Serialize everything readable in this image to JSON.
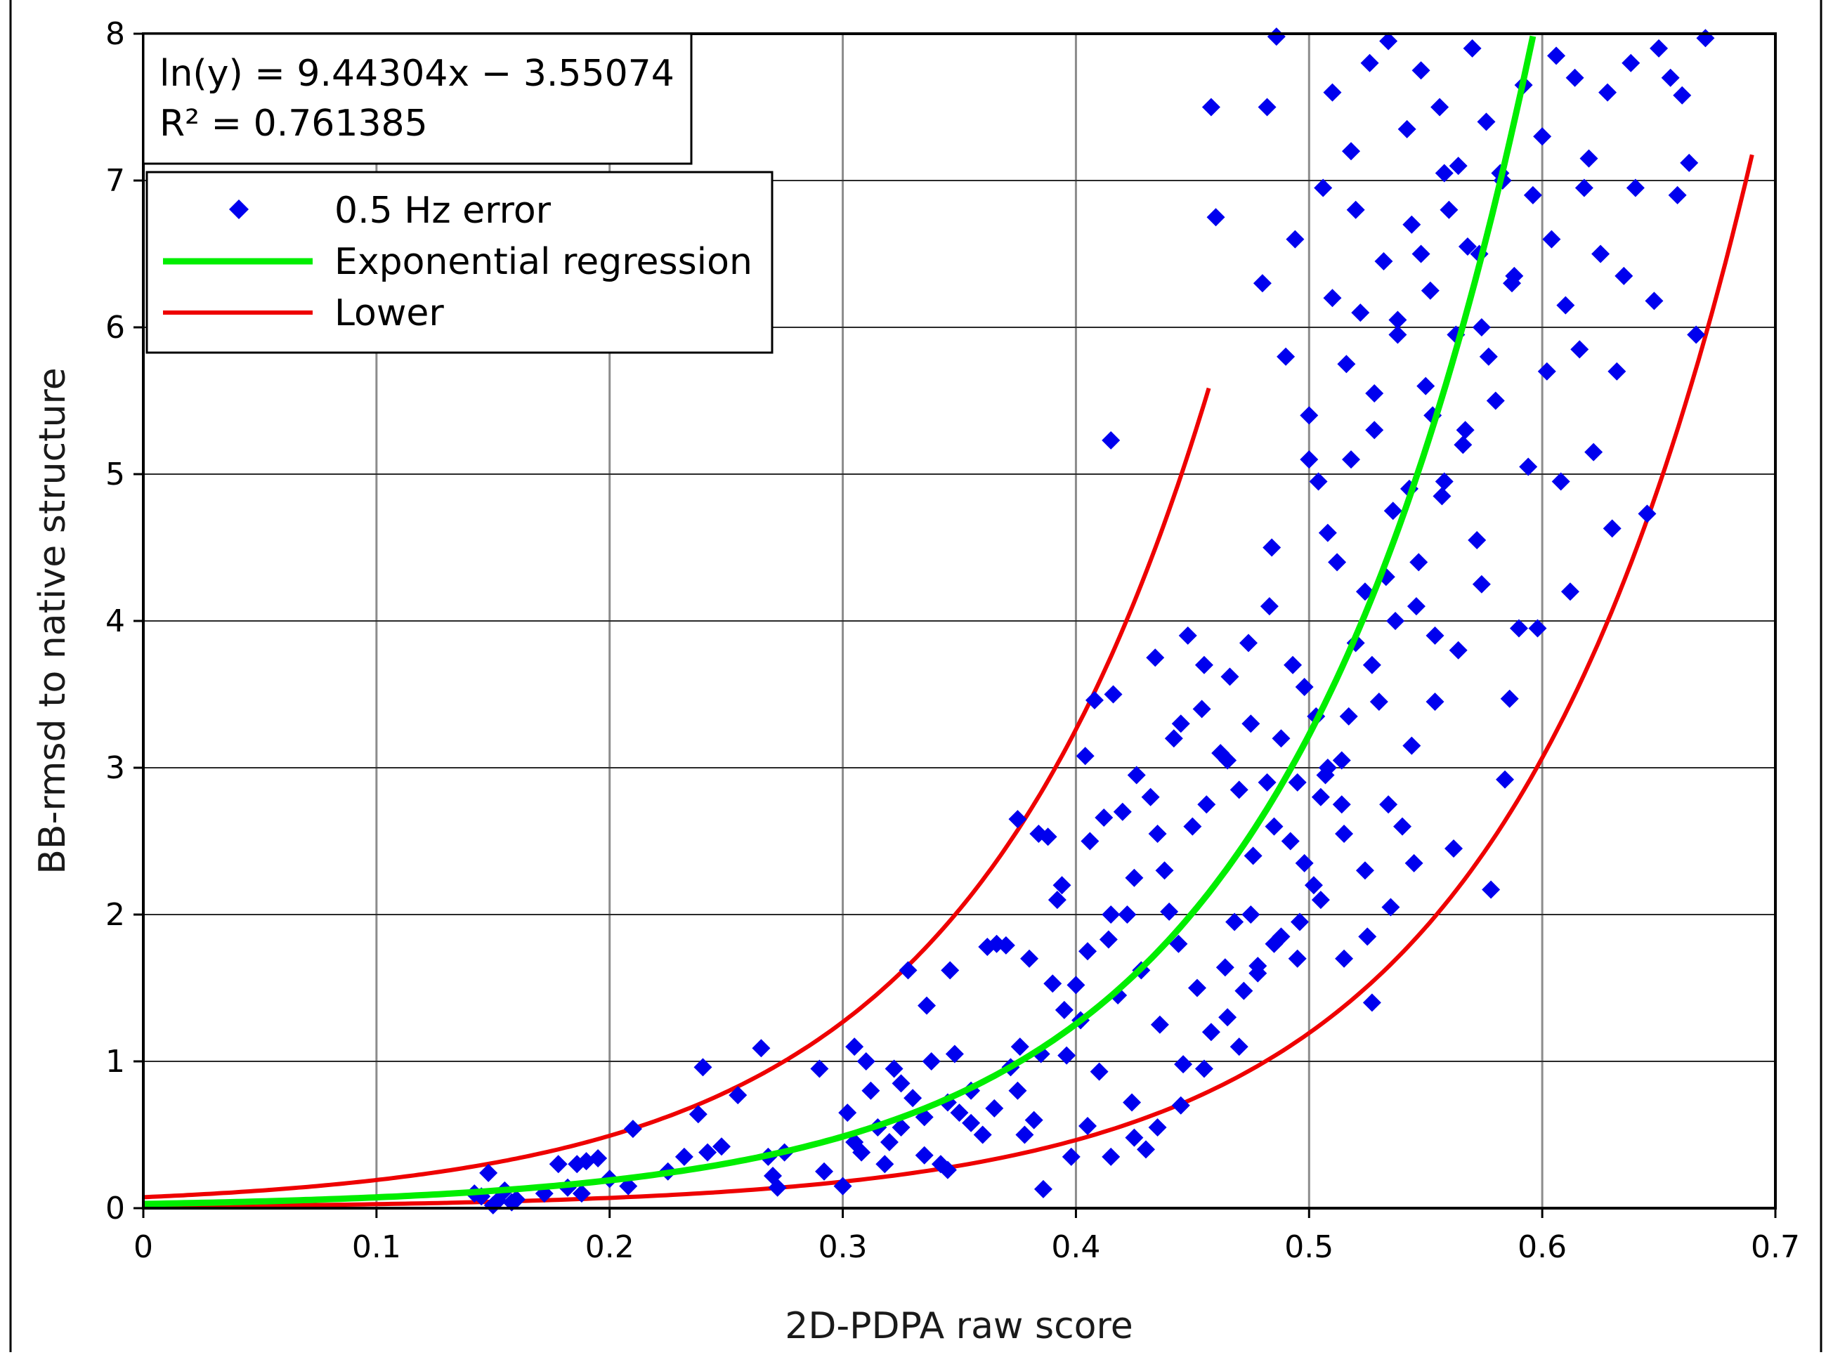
{
  "chart_data": {
    "type": "scatter",
    "title": "",
    "xlabel": "2D-PDPA raw score",
    "ylabel": "BB-rmsd to native structure",
    "xlim": [
      0,
      0.7
    ],
    "ylim": [
      0,
      8
    ],
    "x_ticks": [
      "0",
      "0.1",
      "0.2",
      "0.3",
      "0.4",
      "0.5",
      "0.6",
      "0.7"
    ],
    "y_ticks": [
      "0",
      "1",
      "2",
      "3",
      "4",
      "5",
      "6",
      "7",
      "8"
    ],
    "grid": true,
    "annotation": {
      "equation": "ln(y) = 9.44304x − 3.55074",
      "r_squared": "R² = 0.761385"
    },
    "regression": {
      "slope": 9.44304,
      "intercept": -3.55074
    },
    "series": [
      {
        "name": "0.5 Hz error",
        "kind": "scatter",
        "marker": "diamond",
        "color": "#0000ee",
        "points": [
          [
            0.145,
            0.08
          ],
          [
            0.148,
            0.24
          ],
          [
            0.15,
            0.02
          ],
          [
            0.152,
            0.05
          ],
          [
            0.158,
            0.04
          ],
          [
            0.142,
            0.1
          ],
          [
            0.155,
            0.12
          ],
          [
            0.16,
            0.06
          ],
          [
            0.172,
            0.1
          ],
          [
            0.178,
            0.3
          ],
          [
            0.182,
            0.14
          ],
          [
            0.186,
            0.3
          ],
          [
            0.19,
            0.32
          ],
          [
            0.195,
            0.34
          ],
          [
            0.188,
            0.1
          ],
          [
            0.2,
            0.2
          ],
          [
            0.21,
            0.54
          ],
          [
            0.208,
            0.15
          ],
          [
            0.225,
            0.25
          ],
          [
            0.232,
            0.35
          ],
          [
            0.24,
            0.96
          ],
          [
            0.242,
            0.38
          ],
          [
            0.248,
            0.42
          ],
          [
            0.255,
            0.77
          ],
          [
            0.238,
            0.64
          ],
          [
            0.265,
            1.09
          ],
          [
            0.268,
            0.35
          ],
          [
            0.27,
            0.22
          ],
          [
            0.272,
            0.14
          ],
          [
            0.275,
            0.38
          ],
          [
            0.29,
            0.95
          ],
          [
            0.292,
            0.25
          ],
          [
            0.3,
            0.15
          ],
          [
            0.302,
            0.65
          ],
          [
            0.305,
            1.1
          ],
          [
            0.308,
            0.38
          ],
          [
            0.31,
            1.0
          ],
          [
            0.312,
            0.8
          ],
          [
            0.318,
            0.3
          ],
          [
            0.32,
            0.45
          ],
          [
            0.322,
            0.95
          ],
          [
            0.325,
            0.55
          ],
          [
            0.328,
            1.62
          ],
          [
            0.33,
            0.75
          ],
          [
            0.335,
            0.36
          ],
          [
            0.336,
            1.38
          ],
          [
            0.338,
            1.0
          ],
          [
            0.342,
            0.3
          ],
          [
            0.345,
            0.26
          ],
          [
            0.346,
            1.62
          ],
          [
            0.348,
            1.05
          ],
          [
            0.35,
            0.65
          ],
          [
            0.355,
            0.8
          ],
          [
            0.36,
            0.5
          ],
          [
            0.362,
            1.78
          ],
          [
            0.366,
            1.8
          ],
          [
            0.37,
            1.79
          ],
          [
            0.372,
            0.96
          ],
          [
            0.375,
            2.65
          ],
          [
            0.376,
            1.1
          ],
          [
            0.378,
            0.5
          ],
          [
            0.38,
            1.7
          ],
          [
            0.382,
            0.6
          ],
          [
            0.384,
            2.55
          ],
          [
            0.386,
            0.13
          ],
          [
            0.388,
            2.53
          ],
          [
            0.39,
            1.53
          ],
          [
            0.392,
            2.1
          ],
          [
            0.394,
            2.2
          ],
          [
            0.396,
            1.04
          ],
          [
            0.398,
            0.35
          ],
          [
            0.4,
            1.52
          ],
          [
            0.402,
            1.28
          ],
          [
            0.404,
            3.08
          ],
          [
            0.405,
            0.56
          ],
          [
            0.406,
            2.5
          ],
          [
            0.408,
            3.46
          ],
          [
            0.41,
            0.93
          ],
          [
            0.412,
            2.66
          ],
          [
            0.414,
            1.83
          ],
          [
            0.416,
            3.5
          ],
          [
            0.418,
            1.45
          ],
          [
            0.42,
            2.7
          ],
          [
            0.422,
            2.0
          ],
          [
            0.424,
            0.72
          ],
          [
            0.426,
            2.95
          ],
          [
            0.428,
            1.62
          ],
          [
            0.43,
            0.4
          ],
          [
            0.432,
            2.8
          ],
          [
            0.434,
            3.75
          ],
          [
            0.436,
            1.25
          ],
          [
            0.438,
            2.3
          ],
          [
            0.44,
            2.02
          ],
          [
            0.442,
            3.2
          ],
          [
            0.444,
            1.8
          ],
          [
            0.446,
            0.98
          ],
          [
            0.448,
            3.9
          ],
          [
            0.45,
            2.6
          ],
          [
            0.452,
            1.5
          ],
          [
            0.454,
            3.4
          ],
          [
            0.456,
            2.75
          ],
          [
            0.458,
            1.2
          ],
          [
            0.46,
            6.75
          ],
          [
            0.462,
            3.1
          ],
          [
            0.464,
            1.64
          ],
          [
            0.466,
            3.62
          ],
          [
            0.468,
            1.95
          ],
          [
            0.47,
            2.85
          ],
          [
            0.472,
            1.48
          ],
          [
            0.474,
            3.85
          ],
          [
            0.476,
            2.4
          ],
          [
            0.478,
            1.65
          ],
          [
            0.48,
            6.3
          ],
          [
            0.482,
            2.9
          ],
          [
            0.484,
            4.5
          ],
          [
            0.485,
            1.8
          ],
          [
            0.486,
            7.98
          ],
          [
            0.488,
            3.2
          ],
          [
            0.49,
            5.8
          ],
          [
            0.492,
            2.5
          ],
          [
            0.494,
            6.6
          ],
          [
            0.496,
            1.95
          ],
          [
            0.498,
            3.55
          ],
          [
            0.5,
            5.4
          ],
          [
            0.502,
            2.2
          ],
          [
            0.504,
            4.95
          ],
          [
            0.506,
            6.95
          ],
          [
            0.508,
            3.0
          ],
          [
            0.51,
            7.6
          ],
          [
            0.512,
            4.4
          ],
          [
            0.514,
            2.75
          ],
          [
            0.516,
            5.75
          ],
          [
            0.518,
            7.2
          ],
          [
            0.52,
            3.85
          ],
          [
            0.522,
            6.1
          ],
          [
            0.524,
            4.2
          ],
          [
            0.526,
            7.8
          ],
          [
            0.528,
            5.3
          ],
          [
            0.53,
            3.45
          ],
          [
            0.532,
            6.45
          ],
          [
            0.534,
            7.95
          ],
          [
            0.536,
            4.75
          ],
          [
            0.538,
            5.95
          ],
          [
            0.54,
            2.6
          ],
          [
            0.542,
            7.35
          ],
          [
            0.544,
            6.7
          ],
          [
            0.546,
            4.1
          ],
          [
            0.548,
            7.75
          ],
          [
            0.55,
            5.6
          ],
          [
            0.552,
            6.25
          ],
          [
            0.554,
            3.9
          ],
          [
            0.556,
            7.5
          ],
          [
            0.558,
            4.95
          ],
          [
            0.56,
            6.8
          ],
          [
            0.562,
            2.45
          ],
          [
            0.564,
            7.1
          ],
          [
            0.566,
            5.2
          ],
          [
            0.568,
            6.55
          ],
          [
            0.57,
            7.9
          ],
          [
            0.572,
            4.55
          ],
          [
            0.574,
            6.0
          ],
          [
            0.576,
            7.4
          ],
          [
            0.578,
            2.17
          ],
          [
            0.58,
            5.5
          ],
          [
            0.582,
            7.05
          ],
          [
            0.584,
            2.92
          ],
          [
            0.586,
            3.47
          ],
          [
            0.588,
            6.35
          ],
          [
            0.59,
            3.95
          ],
          [
            0.592,
            7.65
          ],
          [
            0.594,
            5.05
          ],
          [
            0.596,
            6.9
          ],
          [
            0.598,
            3.95
          ],
          [
            0.6,
            7.3
          ],
          [
            0.602,
            5.7
          ],
          [
            0.604,
            6.6
          ],
          [
            0.606,
            7.85
          ],
          [
            0.608,
            4.95
          ],
          [
            0.61,
            6.15
          ],
          [
            0.612,
            4.2
          ],
          [
            0.614,
            7.7
          ],
          [
            0.616,
            5.85
          ],
          [
            0.618,
            6.95
          ],
          [
            0.62,
            7.15
          ],
          [
            0.622,
            5.15
          ],
          [
            0.625,
            6.5
          ],
          [
            0.628,
            7.6
          ],
          [
            0.63,
            4.63
          ],
          [
            0.632,
            5.7
          ],
          [
            0.635,
            6.35
          ],
          [
            0.638,
            7.8
          ],
          [
            0.64,
            6.95
          ],
          [
            0.645,
            4.73
          ],
          [
            0.648,
            6.18
          ],
          [
            0.65,
            7.9
          ],
          [
            0.655,
            7.7
          ],
          [
            0.658,
            6.9
          ],
          [
            0.66,
            7.58
          ],
          [
            0.663,
            7.12
          ],
          [
            0.666,
            5.95
          ],
          [
            0.67,
            7.97
          ],
          [
            0.415,
            5.23
          ],
          [
            0.458,
            7.5
          ],
          [
            0.482,
            7.5
          ],
          [
            0.505,
            2.8
          ],
          [
            0.515,
            1.7
          ],
          [
            0.527,
            1.4
          ],
          [
            0.495,
            1.7
          ],
          [
            0.475,
            2.0
          ],
          [
            0.465,
            1.3
          ],
          [
            0.455,
            0.95
          ],
          [
            0.445,
            0.7
          ],
          [
            0.435,
            0.55
          ],
          [
            0.425,
            0.48
          ],
          [
            0.415,
            0.35
          ],
          [
            0.47,
            1.1
          ],
          [
            0.478,
            1.6
          ],
          [
            0.488,
            1.85
          ],
          [
            0.498,
            2.35
          ],
          [
            0.507,
            2.95
          ],
          [
            0.517,
            3.35
          ],
          [
            0.527,
            3.7
          ],
          [
            0.537,
            4.0
          ],
          [
            0.547,
            4.4
          ],
          [
            0.557,
            4.85
          ],
          [
            0.567,
            5.3
          ],
          [
            0.577,
            5.8
          ],
          [
            0.587,
            6.3
          ],
          [
            0.524,
            2.3
          ],
          [
            0.534,
            2.75
          ],
          [
            0.544,
            3.15
          ],
          [
            0.554,
            3.45
          ],
          [
            0.564,
            3.8
          ],
          [
            0.574,
            4.25
          ],
          [
            0.514,
            3.05
          ],
          [
            0.503,
            3.35
          ],
          [
            0.493,
            3.7
          ],
          [
            0.483,
            4.1
          ],
          [
            0.508,
            4.6
          ],
          [
            0.518,
            5.1
          ],
          [
            0.528,
            5.55
          ],
          [
            0.538,
            6.05
          ],
          [
            0.548,
            6.5
          ],
          [
            0.558,
            7.05
          ],
          [
            0.52,
            6.8
          ],
          [
            0.51,
            6.2
          ],
          [
            0.5,
            5.1
          ],
          [
            0.533,
            4.3
          ],
          [
            0.543,
            4.9
          ],
          [
            0.553,
            5.4
          ],
          [
            0.563,
            5.95
          ],
          [
            0.573,
            6.5
          ],
          [
            0.583,
            7.0
          ],
          [
            0.545,
            2.35
          ],
          [
            0.535,
            2.05
          ],
          [
            0.525,
            1.85
          ],
          [
            0.515,
            2.55
          ],
          [
            0.505,
            2.1
          ],
          [
            0.495,
            2.9
          ],
          [
            0.485,
            2.6
          ],
          [
            0.475,
            3.3
          ],
          [
            0.465,
            3.05
          ],
          [
            0.455,
            3.7
          ],
          [
            0.445,
            3.3
          ],
          [
            0.435,
            2.55
          ],
          [
            0.425,
            2.25
          ],
          [
            0.415,
            2.0
          ],
          [
            0.405,
            1.75
          ],
          [
            0.395,
            1.35
          ],
          [
            0.385,
            1.05
          ],
          [
            0.375,
            0.8
          ],
          [
            0.365,
            0.68
          ],
          [
            0.355,
            0.58
          ],
          [
            0.345,
            0.72
          ],
          [
            0.335,
            0.62
          ],
          [
            0.325,
            0.85
          ],
          [
            0.315,
            0.55
          ],
          [
            0.305,
            0.45
          ]
        ]
      },
      {
        "name": "Exponential regression",
        "kind": "line",
        "color": "#00ee00",
        "formula": "y = exp(9.44304x - 3.55074)",
        "x_range": [
          0,
          0.596
        ]
      },
      {
        "name": "Lower",
        "kind": "line",
        "color": "#ee0000",
        "formula": "y = 2.6 * exp(9.44304x - 3.55074)",
        "x_range": [
          0,
          0.457
        ]
      },
      {
        "name": "",
        "kind": "line",
        "color": "#ee0000",
        "formula": "y = 0.37 * exp(9.44304x - 3.55074)",
        "x_range": [
          0,
          0.69
        ]
      }
    ],
    "legend": {
      "position": "top-left",
      "entries": [
        "0.5 Hz error",
        "Exponential regression",
        "Lower"
      ]
    }
  }
}
